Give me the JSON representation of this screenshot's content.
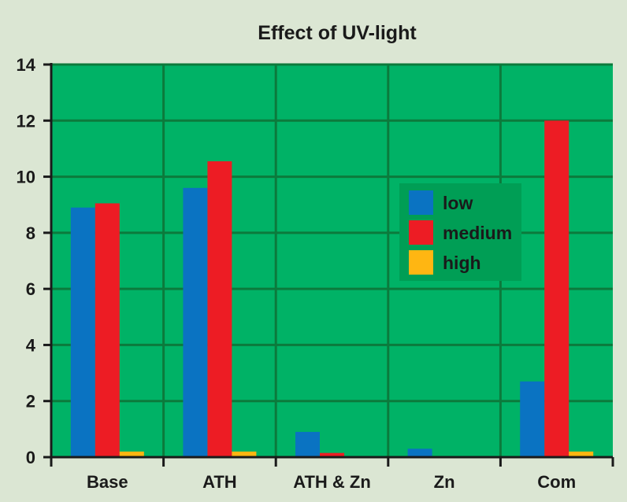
{
  "chart_data": {
    "type": "bar",
    "title": "Effect of UV-light",
    "xlabel": "",
    "ylabel": "",
    "ylim": [
      0,
      14
    ],
    "yticks": [
      0,
      2,
      4,
      6,
      8,
      10,
      12,
      14
    ],
    "grid": true,
    "legend_position": "center-right",
    "categories": [
      "Base",
      "ATH",
      "ATH & Zn",
      "Zn",
      "Com"
    ],
    "series": [
      {
        "name": "low",
        "color": "#0a73c2",
        "values": [
          8.9,
          9.6,
          0.9,
          0.3,
          2.7
        ]
      },
      {
        "name": "medium",
        "color": "#ed1c24",
        "values": [
          9.05,
          10.55,
          0.15,
          0.0,
          12.0
        ]
      },
      {
        "name": "high",
        "color": "#ffb612",
        "values": [
          0.2,
          0.2,
          0.0,
          0.0,
          0.2
        ]
      }
    ]
  },
  "colors": {
    "plot_background": "#00b266",
    "grid": "#0c7a3c",
    "axis": "#1a1a1a",
    "page_background": "#dbe6d3",
    "legend_background": "#009e55"
  }
}
